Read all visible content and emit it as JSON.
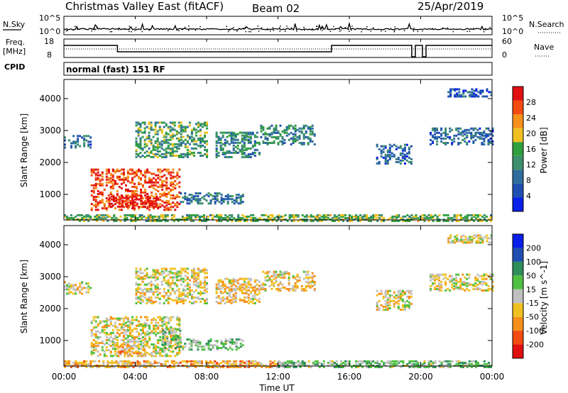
{
  "header": {
    "title": "Christmas Valley East (fitACF)",
    "beam": "Beam 02",
    "date": "25/Apr/2019"
  },
  "nsky": {
    "label": "N.Sky",
    "top_tick": "10^5",
    "bottom_tick": "10^0",
    "right_label": "N.Search",
    "right_top_tick": "10^5",
    "right_bottom_tick": "10^0"
  },
  "freq": {
    "label_line1": "Freq.",
    "label_line2": "[MHz]",
    "top_tick": "18",
    "bottom_tick": "8",
    "right_label": "Nave",
    "right_top_tick": "60",
    "right_bottom_tick": "0"
  },
  "cpid": {
    "label": "CPID",
    "mode": "normal (fast) 151 RF"
  },
  "colors": {
    "power_scale": [
      "#0a1fe8",
      "#1f4fb0",
      "#2e6e9c",
      "#3d8e6c",
      "#2e9f3e",
      "#f0c020",
      "#f7901a",
      "#f24a10",
      "#e01010"
    ],
    "velocity_scale": [
      "#e01010",
      "#f24a10",
      "#f7901a",
      "#f0c020",
      "#c0c0c0",
      "#4fc040",
      "#2e8e5c",
      "#1f4fb0",
      "#0a1fe8"
    ],
    "ground_scatter": "#c0c0c0"
  },
  "chart_data": [
    {
      "type": "heatmap",
      "name": "power",
      "ylabel": "Slant Range [km]",
      "yticks": [
        "1000",
        "2000",
        "3000",
        "4000"
      ],
      "ylim": [
        200,
        4600
      ],
      "xlim_hours": [
        0,
        24
      ],
      "colorbar_label": "Power [dB]",
      "colorbar_ticks": [
        "4",
        "8",
        "12",
        "16",
        "20",
        "24",
        "28"
      ],
      "colorbar_range": [
        0,
        32
      ],
      "regions": [
        {
          "t0": 1.5,
          "t1": 6.5,
          "r0": 550,
          "r1": 1850,
          "level": 0.85
        },
        {
          "t0": 2.5,
          "t1": 5.2,
          "r0": 650,
          "r1": 1000,
          "level": 0.97
        },
        {
          "t0": 6.5,
          "t1": 10.0,
          "r0": 750,
          "r1": 1100,
          "level": 0.3
        },
        {
          "t0": 0.0,
          "t1": 1.5,
          "r0": 2500,
          "r1": 2900,
          "level": 0.25
        },
        {
          "t0": 4.0,
          "t1": 8.0,
          "r0": 2200,
          "r1": 3300,
          "level": 0.45
        },
        {
          "t0": 8.5,
          "t1": 11.0,
          "r0": 2200,
          "r1": 3000,
          "level": 0.35
        },
        {
          "t0": 11.0,
          "t1": 14.0,
          "r0": 2600,
          "r1": 3200,
          "level": 0.35
        },
        {
          "t0": 17.5,
          "t1": 19.5,
          "r0": 2000,
          "r1": 2600,
          "level": 0.25
        },
        {
          "t0": 20.5,
          "t1": 24.0,
          "r0": 2600,
          "r1": 3100,
          "level": 0.25
        },
        {
          "t0": 21.5,
          "t1": 24.0,
          "r0": 4100,
          "r1": 4350,
          "level": 0.2
        },
        {
          "t0": 0.0,
          "t1": 24.0,
          "r0": 200,
          "r1": 420,
          "level": 0.5
        }
      ]
    },
    {
      "type": "heatmap",
      "name": "velocity",
      "ylabel": "Slant Range [km]",
      "yticks": [
        "1000",
        "2000",
        "3000",
        "4000"
      ],
      "ylim": [
        200,
        4600
      ],
      "xlim_hours": [
        0,
        24
      ],
      "xticks": [
        "00:00",
        "04:00",
        "08:00",
        "12:00",
        "16:00",
        "20:00",
        "00:00"
      ],
      "xlabel": "Time UT",
      "colorbar_label": "Velocity [m s^-1]",
      "colorbar_ticks": [
        "-200",
        "-100",
        "-50",
        "-15",
        "15",
        "50",
        "100",
        "200"
      ],
      "regions": [
        {
          "t0": 1.5,
          "t1": 6.5,
          "r0": 550,
          "r1": 1800,
          "level": 0.45
        },
        {
          "t0": 3.0,
          "t1": 4.5,
          "r0": 550,
          "r1": 900,
          "level": 0.35
        },
        {
          "t0": 5.5,
          "t1": 6.5,
          "r0": 800,
          "r1": 1400,
          "level": 0.6
        },
        {
          "t0": 6.5,
          "t1": 10.0,
          "r0": 750,
          "r1": 1100,
          "level": 0.6
        },
        {
          "t0": 0.0,
          "t1": 1.5,
          "r0": 2500,
          "r1": 2900,
          "level": 0.45
        },
        {
          "t0": 4.0,
          "t1": 8.0,
          "r0": 2200,
          "r1": 3300,
          "level": 0.45
        },
        {
          "t0": 8.5,
          "t1": 11.0,
          "r0": 2200,
          "r1": 3000,
          "level": 0.4
        },
        {
          "t0": 11.0,
          "t1": 14.0,
          "r0": 2600,
          "r1": 3200,
          "level": 0.4
        },
        {
          "t0": 17.5,
          "t1": 19.5,
          "r0": 2000,
          "r1": 2600,
          "level": 0.45
        },
        {
          "t0": 20.5,
          "t1": 24.0,
          "r0": 2600,
          "r1": 3100,
          "level": 0.45
        },
        {
          "t0": 21.5,
          "t1": 24.0,
          "r0": 4100,
          "r1": 4350,
          "level": 0.45
        },
        {
          "t0": 0.0,
          "t1": 12.0,
          "r0": 200,
          "r1": 420,
          "level": 0.35
        },
        {
          "t0": 12.0,
          "t1": 24.0,
          "r0": 200,
          "r1": 420,
          "level": 0.6
        }
      ]
    }
  ]
}
